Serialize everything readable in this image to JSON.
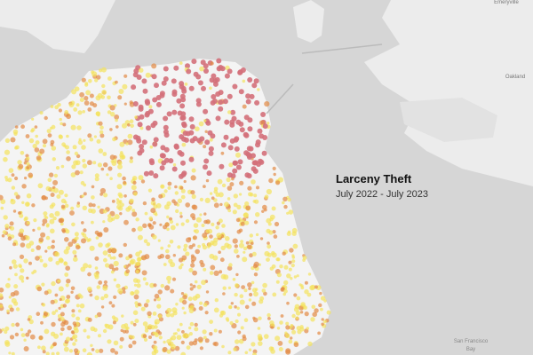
{
  "map": {
    "title": "Larceny Theft",
    "subtitle": "July 2022 - July 2023",
    "places": [
      "Emeryville",
      "Oakland",
      "San Francisco",
      "Bay"
    ]
  }
}
